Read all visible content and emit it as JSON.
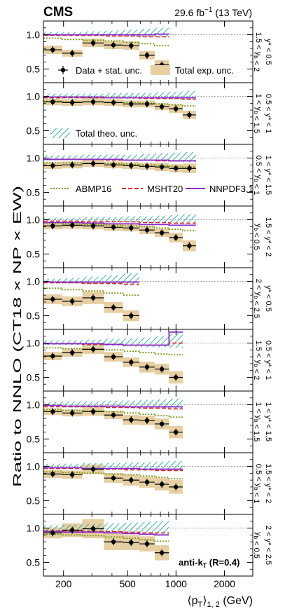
{
  "header": {
    "experiment": "CMS",
    "lumi_text": "29.6 fb",
    "lumi_exponent": "−1",
    "energy_text": " (13 TeV)"
  },
  "ylabel": "Ratio to NNLO (CT18 × NP × EW)",
  "xlabel": "⟨p",
  "xlabel_sub": "T",
  "xlabel_tail": "⟩",
  "xlabel_sub2": "1, 2",
  "xlabel_units": " (GeV)",
  "algo_label": "anti-k",
  "algo_sub": "T",
  "algo_tail": " (R=0.4)",
  "x_ticks": [
    200,
    500,
    1000,
    2000
  ],
  "y_ticks": [
    "0.5",
    "1.0"
  ],
  "legend": {
    "data": "Data + stat. unc.",
    "exp": "Total exp. unc.",
    "theo": "Total theo. unc.",
    "abmp": "ABMP16",
    "msht": "MSHT20",
    "nnpdf": "NNPDF3.1"
  },
  "colors": {
    "exp_band": "#e6cfa3",
    "theo_hatch": "#3aafa9",
    "abmp": "#7f9a1a",
    "msht": "#e0262a",
    "nnpdf": "#8a2bc6",
    "data": "#000000"
  },
  "chart_data": {
    "type": "scatter",
    "x_scale": "log",
    "xlim": [
      150,
      3000
    ],
    "ylim": [
      0.3,
      1.2
    ],
    "panels": [
      {
        "label_lines": [
          "y* < 0.5",
          "1.5 < y_b < 2"
        ],
        "bins": [
          [
            150,
            196
          ],
          [
            196,
            262
          ],
          [
            262,
            357
          ],
          [
            357,
            468
          ],
          [
            468,
            592
          ],
          [
            592,
            737
          ],
          [
            737,
            905
          ]
        ],
        "data": [
          0.78,
          0.73,
          0.88,
          0.85,
          0.84,
          0.7,
          0.56
        ],
        "exp_unc": [
          0.06,
          0.05,
          0.06,
          0.06,
          0.06,
          0.06,
          0.07
        ],
        "theo_up": [
          1.04,
          1.04,
          1.05,
          1.06,
          1.07,
          1.09,
          1.1
        ],
        "theo_down": [
          0.98,
          0.98,
          0.98,
          0.98,
          0.97,
          0.97,
          0.96
        ],
        "abmp": [
          0.95,
          0.93,
          0.92,
          0.91,
          0.89,
          0.87,
          0.84
        ],
        "msht": [
          0.99,
          0.99,
          0.99,
          0.98,
          0.98,
          0.97,
          0.97
        ],
        "nnpdf": [
          1.0,
          1.0,
          1.0,
          1.0,
          1.0,
          1.0,
          1.01
        ]
      },
      {
        "label_lines": [
          "0.5 < y* < 1",
          "1 < y_b < 1.5"
        ],
        "bins": [
          [
            150,
            196
          ],
          [
            196,
            262
          ],
          [
            262,
            357
          ],
          [
            357,
            468
          ],
          [
            468,
            592
          ],
          [
            592,
            737
          ],
          [
            737,
            905
          ],
          [
            905,
            1101
          ],
          [
            1101,
            1330
          ]
        ],
        "data": [
          0.92,
          0.91,
          0.92,
          0.91,
          0.89,
          0.89,
          0.85,
          0.82,
          0.73
        ],
        "exp_unc": [
          0.05,
          0.05,
          0.05,
          0.05,
          0.05,
          0.05,
          0.05,
          0.06,
          0.06
        ],
        "theo_up": [
          1.04,
          1.04,
          1.04,
          1.05,
          1.05,
          1.05,
          1.06,
          1.07,
          1.08
        ],
        "theo_down": [
          0.97,
          0.97,
          0.97,
          0.97,
          0.96,
          0.96,
          0.96,
          0.95,
          0.95
        ],
        "abmp": [
          0.93,
          0.92,
          0.92,
          0.91,
          0.91,
          0.9,
          0.89,
          0.88,
          0.86
        ],
        "msht": [
          0.98,
          0.98,
          0.98,
          0.98,
          0.98,
          0.97,
          0.97,
          0.97,
          0.96
        ],
        "nnpdf": [
          0.99,
          0.99,
          0.99,
          0.98,
          0.98,
          0.98,
          0.98,
          0.98,
          0.98
        ]
      },
      {
        "label_lines": [
          "1 < y* < 1.5",
          "0.5 < y_b < 1"
        ],
        "bins": [
          [
            150,
            196
          ],
          [
            196,
            262
          ],
          [
            262,
            357
          ],
          [
            357,
            468
          ],
          [
            468,
            592
          ],
          [
            592,
            737
          ],
          [
            737,
            905
          ],
          [
            905,
            1101
          ],
          [
            1101,
            1330
          ]
        ],
        "data": [
          0.89,
          0.9,
          0.92,
          0.9,
          0.89,
          0.88,
          0.87,
          0.85,
          0.85
        ],
        "exp_unc": [
          0.05,
          0.05,
          0.05,
          0.05,
          0.05,
          0.05,
          0.06,
          0.06,
          0.07
        ],
        "theo_up": [
          1.04,
          1.04,
          1.05,
          1.05,
          1.05,
          1.06,
          1.07,
          1.08,
          1.09
        ],
        "theo_down": [
          0.97,
          0.97,
          0.97,
          0.96,
          0.96,
          0.96,
          0.95,
          0.95,
          0.94
        ],
        "abmp": [
          0.93,
          0.93,
          0.92,
          0.92,
          0.91,
          0.9,
          0.89,
          0.88,
          0.87
        ],
        "msht": [
          0.98,
          0.98,
          0.98,
          0.97,
          0.97,
          0.97,
          0.96,
          0.96,
          0.96
        ],
        "nnpdf": [
          0.98,
          0.98,
          0.98,
          0.98,
          0.97,
          0.97,
          0.97,
          0.96,
          0.96
        ]
      },
      {
        "label_lines": [
          "1.5 < y* < 2",
          "y_b < 0.5"
        ],
        "bins": [
          [
            150,
            196
          ],
          [
            196,
            262
          ],
          [
            262,
            357
          ],
          [
            357,
            468
          ],
          [
            468,
            592
          ],
          [
            592,
            737
          ],
          [
            737,
            905
          ],
          [
            905,
            1101
          ],
          [
            1101,
            1330
          ]
        ],
        "data": [
          0.91,
          0.92,
          0.91,
          0.89,
          0.88,
          0.85,
          0.81,
          0.74,
          0.62
        ],
        "exp_unc": [
          0.05,
          0.05,
          0.05,
          0.05,
          0.05,
          0.06,
          0.06,
          0.07,
          0.08
        ],
        "theo_up": [
          1.03,
          1.03,
          1.04,
          1.04,
          1.05,
          1.05,
          1.06,
          1.07,
          1.08
        ],
        "theo_down": [
          0.97,
          0.97,
          0.96,
          0.96,
          0.96,
          0.95,
          0.95,
          0.94,
          0.94
        ],
        "abmp": [
          0.95,
          0.94,
          0.93,
          0.92,
          0.91,
          0.9,
          0.88,
          0.86,
          0.84
        ],
        "msht": [
          0.98,
          0.98,
          0.97,
          0.97,
          0.97,
          0.96,
          0.96,
          0.95,
          0.95
        ],
        "nnpdf": [
          0.96,
          0.96,
          0.95,
          0.94,
          0.94,
          0.93,
          0.93,
          0.92,
          0.92
        ]
      },
      {
        "label_lines": [
          "y* < 0.5",
          "2 < y_b < 2.5"
        ],
        "bins": [
          [
            150,
            196
          ],
          [
            196,
            262
          ],
          [
            262,
            357
          ],
          [
            357,
            468
          ],
          [
            468,
            592
          ]
        ],
        "data": [
          0.74,
          0.71,
          0.76,
          0.62,
          0.5
        ],
        "exp_unc": [
          0.07,
          0.07,
          0.09,
          0.08,
          0.08
        ],
        "theo_up": [
          1.04,
          1.05,
          1.07,
          1.09,
          1.12
        ],
        "theo_down": [
          0.97,
          0.97,
          0.96,
          0.95,
          0.94
        ],
        "abmp": [
          0.9,
          0.88,
          0.86,
          0.83,
          0.8
        ],
        "msht": [
          0.98,
          0.98,
          0.97,
          0.97,
          0.96
        ],
        "nnpdf": [
          0.99,
          0.99,
          0.99,
          0.99,
          0.99
        ]
      },
      {
        "label_lines": [
          "0.5 < y* < 1",
          "1.5 < y_b < 2"
        ],
        "bins": [
          [
            150,
            196
          ],
          [
            196,
            262
          ],
          [
            262,
            357
          ],
          [
            357,
            468
          ],
          [
            468,
            592
          ],
          [
            592,
            737
          ],
          [
            737,
            905
          ],
          [
            905,
            1101
          ]
        ],
        "data": [
          0.81,
          0.86,
          0.91,
          0.8,
          0.72,
          0.65,
          0.62,
          0.5
        ],
        "exp_unc": [
          0.06,
          0.06,
          0.07,
          0.07,
          0.07,
          0.08,
          0.08,
          0.09
        ],
        "theo_up": [
          1.04,
          1.04,
          1.05,
          1.06,
          1.07,
          1.08,
          1.1,
          1.14
        ],
        "theo_down": [
          0.97,
          0.97,
          0.96,
          0.96,
          0.95,
          0.94,
          0.94,
          0.93
        ],
        "abmp": [
          0.93,
          0.92,
          0.91,
          0.9,
          0.88,
          0.86,
          0.84,
          0.83
        ],
        "msht": [
          0.99,
          0.99,
          0.98,
          0.98,
          0.97,
          0.97,
          0.97,
          1.0
        ],
        "nnpdf": [
          0.99,
          0.99,
          0.99,
          0.98,
          0.97,
          0.97,
          0.97,
          1.16
        ]
      },
      {
        "label_lines": [
          "1 < y* < 1.5",
          "1 < y_b < 1.5"
        ],
        "bins": [
          [
            150,
            196
          ],
          [
            196,
            262
          ],
          [
            262,
            357
          ],
          [
            357,
            468
          ],
          [
            468,
            592
          ],
          [
            592,
            737
          ],
          [
            737,
            905
          ],
          [
            905,
            1101
          ]
        ],
        "data": [
          0.9,
          0.88,
          0.9,
          0.85,
          0.78,
          0.77,
          0.72,
          0.6
        ],
        "exp_unc": [
          0.05,
          0.05,
          0.06,
          0.06,
          0.07,
          0.07,
          0.08,
          0.09
        ],
        "theo_up": [
          1.04,
          1.05,
          1.05,
          1.06,
          1.06,
          1.07,
          1.08,
          1.09
        ],
        "theo_down": [
          0.97,
          0.96,
          0.96,
          0.96,
          0.95,
          0.95,
          0.94,
          0.93
        ],
        "abmp": [
          0.93,
          0.92,
          0.91,
          0.9,
          0.88,
          0.86,
          0.84,
          0.82
        ],
        "msht": [
          0.97,
          0.97,
          0.97,
          0.96,
          0.96,
          0.95,
          0.95,
          0.94
        ],
        "nnpdf": [
          0.99,
          0.98,
          0.98,
          0.98,
          0.97,
          0.97,
          0.97,
          0.97
        ]
      },
      {
        "label_lines": [
          "1.5 < y* < 2",
          "0.5 < y_b < 1"
        ],
        "bins": [
          [
            150,
            196
          ],
          [
            196,
            262
          ],
          [
            262,
            357
          ],
          [
            357,
            468
          ],
          [
            468,
            592
          ],
          [
            592,
            737
          ],
          [
            737,
            905
          ],
          [
            905,
            1101
          ]
        ],
        "data": [
          0.89,
          0.88,
          0.96,
          0.83,
          0.8,
          0.77,
          0.74,
          0.7
        ],
        "exp_unc": [
          0.06,
          0.06,
          0.07,
          0.07,
          0.08,
          0.08,
          0.09,
          0.1
        ],
        "theo_up": [
          1.04,
          1.04,
          1.05,
          1.05,
          1.06,
          1.06,
          1.07,
          1.08
        ],
        "theo_down": [
          0.97,
          0.97,
          0.96,
          0.96,
          0.95,
          0.95,
          0.94,
          0.94
        ],
        "abmp": [
          0.92,
          0.91,
          0.9,
          0.89,
          0.88,
          0.86,
          0.84,
          0.82
        ],
        "msht": [
          0.97,
          0.97,
          0.96,
          0.96,
          0.95,
          0.95,
          0.94,
          0.94
        ],
        "nnpdf": [
          0.98,
          0.98,
          0.97,
          0.97,
          0.97,
          0.96,
          0.96,
          0.96
        ]
      },
      {
        "label_lines": [
          "2 < y* < 2.5",
          "y_b < 0.5"
        ],
        "bins": [
          [
            150,
            196
          ],
          [
            196,
            262
          ],
          [
            262,
            357
          ],
          [
            357,
            468
          ],
          [
            468,
            592
          ],
          [
            592,
            737
          ],
          [
            737,
            905
          ]
        ],
        "data": [
          0.93,
          0.97,
          0.99,
          0.8,
          0.79,
          0.77,
          0.64
        ],
        "exp_unc": [
          0.08,
          0.1,
          0.14,
          0.12,
          0.11,
          0.11,
          0.11
        ],
        "theo_up": [
          1.04,
          1.05,
          1.06,
          1.07,
          1.08,
          1.09,
          1.1
        ],
        "theo_down": [
          0.96,
          0.95,
          0.95,
          0.94,
          0.93,
          0.92,
          0.91
        ],
        "abmp": [
          0.91,
          0.9,
          0.89,
          0.87,
          0.85,
          0.83,
          0.81
        ],
        "msht": [
          0.96,
          0.96,
          0.95,
          0.95,
          0.94,
          0.93,
          0.93
        ],
        "nnpdf": [
          0.95,
          0.94,
          0.94,
          0.93,
          0.92,
          0.91,
          0.9
        ]
      }
    ]
  }
}
